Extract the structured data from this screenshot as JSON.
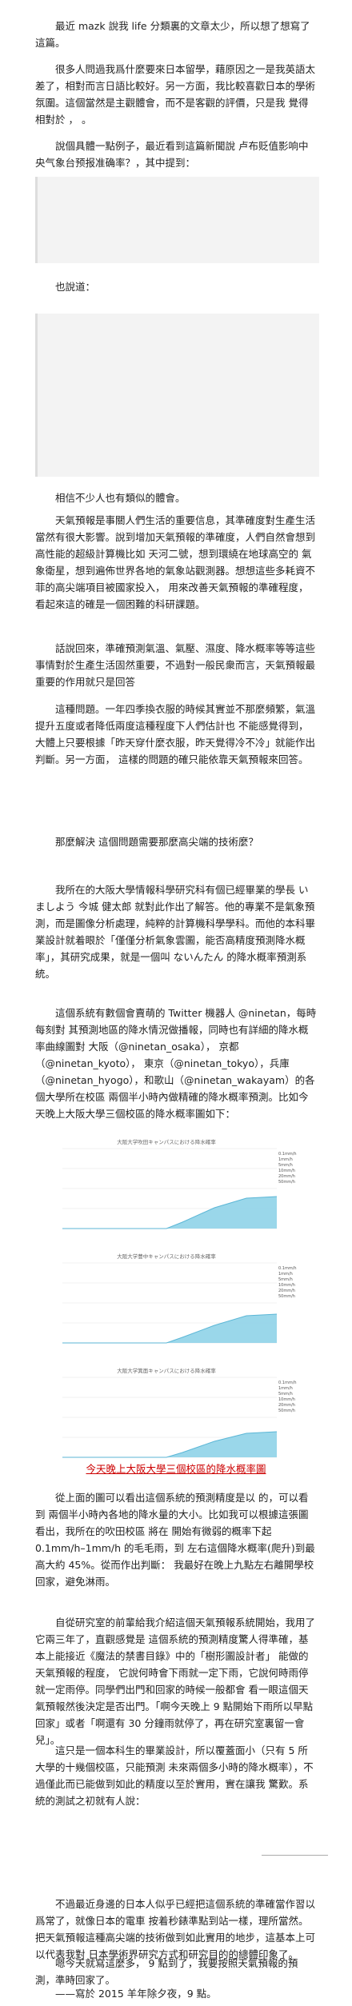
{
  "article": {
    "p1": "最近 mazk 說我 life 分類裏的文章太少，所以想了想寫了這篇。",
    "p2": "很多人問過我爲什麼要來日本留學，藉原因之一是我英語太差了，相對而言日語比較好。另一方面，我比較喜歡日本的學術氛圍。這個當然是主觀體會，而不是客觀的評價，只是我 覺得相對於 ，  。",
    "p3": "說個具體一點例子，最近看到這篇新聞說 卢布贬值影响中央气象台预报准确率？，其中提到：",
    "p3_link": "卢布贬值影响中央气象台预报准确率？",
    "p4": "也說道：",
    "p5": "相信不少人也有類似的體會。",
    "p6": "天氣預報是事關人們生活的重要信息，其準確度對生產生活當然有很大影響。說到增加天氣預報的準確度，人們自然會想到高性能的超級計算機比如 天河二號，想到環繞在地球高空的 氣象衛星，想到遍佈世界各地的氣象站觀測器。想想這些多耗資不菲的高尖端項目被國家投入， 用來改善天氣預報的準確程度，看起來這的確是一個困難的科研課題。",
    "p7": "話說回來，準確預測氣溫、氣壓、濕度、降水概率等等這些事情對於生產生活固然重要，不過對一般民衆而言，天氣預報最重要的作用就只是回答",
    "p8": "這種問題。一年四季換衣服的時候其實並不那麼頻繁，氣溫提升五度或者降低兩度這種程度下人們估計也 不能感覺得到，大體上只要根據「昨天穿什麼衣服，昨天覺得冷不冷」就能作出判斷。另一方面，  這樣的問題的確只能依靠天氣預報來回答。",
    "p9": "那麼解決   這個問題需要那麼高尖端的技術麼？",
    "p10": "我所在的大阪大學情報科學研究科有個已經畢業的學長 いましよう 今城 健太郎 就對此作出了解答。他的專業不是氣象預測，而是圖像分析處理，純粹的計算機科學學科。而他的本科畢業設計就着眼於「僅僅分析氣象雲圖，能否高精度預測降水概率」，其研究成果，就是一個叫 ないんたん 的降水概率預測系統。",
    "p11": "這個系統有數個會賣萌的 Twitter 機器人 @ninetan，每時每刻對 其預測地區的降水情況做播報，同時也有詳細的降水概率曲線圖對 大阪（@ninetan_osaka）， 京都（@ninetan_kyoto）， 東京（@ninetan_tokyo），兵庫（@ninetan_hyogo），和歌山（@ninetan_wakayam）的各個大學所在校區 兩個半小時內做精確的降水概率預測。比如今天晚上大阪大學三個校區的降水概率圖如下：",
    "p12": "從上面的圖可以看出這個系統的預測精度是以   的，可以看到 兩個半小時內各地的降水量的大小。比如我可以根據這張圖看出，我所在的吹田校區 將在   開始有微弱的概率下起 0.1mm/h–1mm/h 的毛毛雨，到   左右這個降水概率(爬升)到最高大約 45%。從而作出判斷： 我最好在晚上九點左右離開學校回家，避免淋雨。",
    "p13": "自從研究室的前輩給我介紹這個天氣預報系統開始，我用了它兩三年了，直觀感覺是 這個系統的預測精度驚人得準確，基本上能接近《魔法的禁書目錄》中的「樹形圖設計者」 能做的天氣預報的程度， 它說何時會下雨就一定下雨，它說何時雨停就一定雨停。同學們出門和回家的時候一般都會 看一眼這個天氣預報然後決定是否出門。「啊今天晚上 9 點開始下雨所以早點回家」或者「啊還有 30 分鐘雨就停了，再在研究室裏留一會兒」。",
    "p14": "這只是一個本科生的畢業設計，所以覆蓋面小（只有 5 所大學的十幾個校區，只能預測 未來兩個多小時的降水概率），不過僅此而已能做到如此的精度以至於實用，實在讓我 驚歎。系統的測試之初就有人說：",
    "p15": "不過最近身邊的日本人似乎已經把這個系統的準確當作習以爲常了，就像日本的電車 按着秒錶準點到站一樣，理所當然。把天氣預報這種高尖端的技術做到如此實用的地步，這基本上可以代表我對 日本學術界研究方式和研究目的的總體印象了。",
    "p16": "嗯今天就寫這麼多， 9  點到了，我要按照天氣預報的預測，準時回家了。",
    "p17": "——寫於 2015 羊年除夕夜，9 點。"
  },
  "figure": {
    "caption": "今天晚上大阪大學三個校區的降水概率圖",
    "charts": [
      {
        "title": "大阪大学吹田キャンパスにおける降水確率"
      },
      {
        "title": "大阪大学豊中キャンパスにおける降水確率"
      },
      {
        "title": "大阪大学箕面キャンパスにおける降水確率"
      }
    ],
    "legend": [
      "0.1mm/h",
      "1mm/h",
      "5mm/h",
      "10mm/h",
      "20mm/h",
      "50mm/h"
    ]
  },
  "colors": {
    "link": "#1a4fa0",
    "caption": "#c00000",
    "series": "#8fd3e8"
  }
}
